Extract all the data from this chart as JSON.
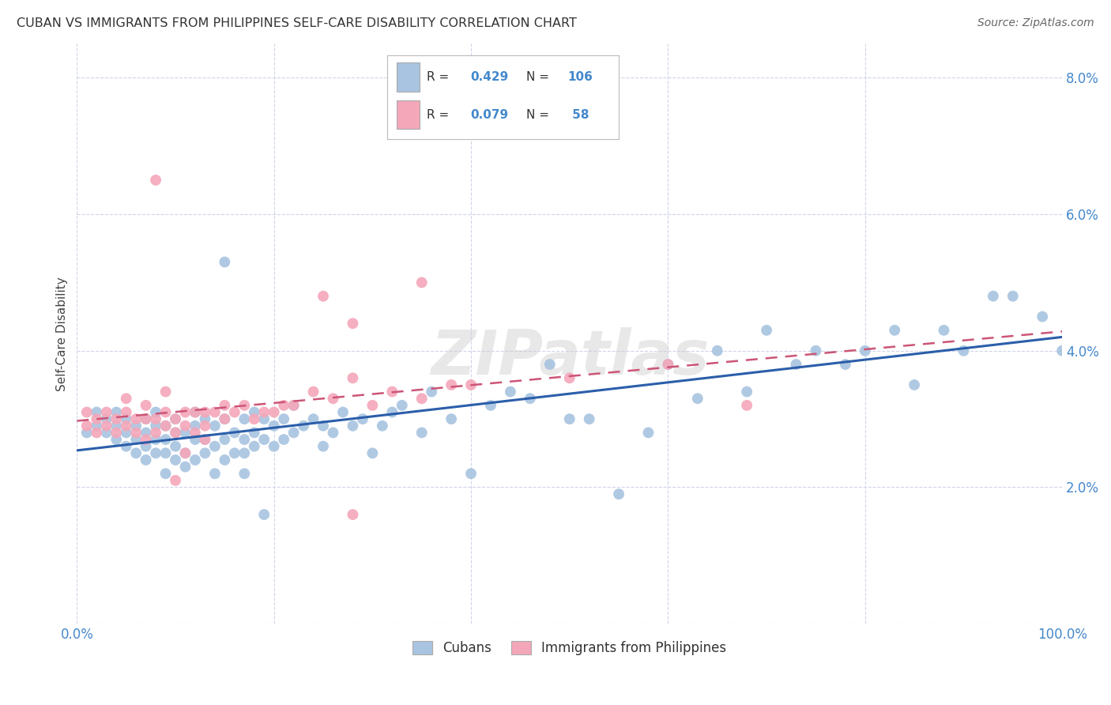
{
  "title": "CUBAN VS IMMIGRANTS FROM PHILIPPINES SELF-CARE DISABILITY CORRELATION CHART",
  "source": "Source: ZipAtlas.com",
  "ylabel": "Self-Care Disability",
  "yticks": [
    0.0,
    0.02,
    0.04,
    0.06,
    0.08
  ],
  "ytick_labels": [
    "",
    "2.0%",
    "4.0%",
    "6.0%",
    "8.0%"
  ],
  "xlim": [
    0.0,
    1.0
  ],
  "ylim": [
    0.0,
    0.085
  ],
  "cubans_R": 0.429,
  "cubans_N": 106,
  "philippines_R": 0.079,
  "philippines_N": 58,
  "cubans_color": "#a8c4e0",
  "philippines_color": "#f4a7b9",
  "cubans_line_color": "#2b5eaa",
  "philippines_line_color": "#cc5577",
  "background_color": "#ffffff",
  "grid_color": "#d0d5e8",
  "watermark": "ZIPatlas",
  "legend_label_cubans": "Cubans",
  "legend_label_philippines": "Immigrants from Philippines",
  "tick_color": "#4488cc",
  "cubans_x": [
    0.01,
    0.02,
    0.02,
    0.03,
    0.03,
    0.04,
    0.04,
    0.04,
    0.05,
    0.05,
    0.05,
    0.06,
    0.06,
    0.06,
    0.07,
    0.07,
    0.07,
    0.07,
    0.08,
    0.08,
    0.08,
    0.08,
    0.09,
    0.09,
    0.09,
    0.09,
    0.1,
    0.1,
    0.1,
    0.1,
    0.11,
    0.11,
    0.11,
    0.12,
    0.12,
    0.12,
    0.12,
    0.13,
    0.13,
    0.13,
    0.14,
    0.14,
    0.14,
    0.15,
    0.15,
    0.15,
    0.16,
    0.16,
    0.17,
    0.17,
    0.17,
    0.18,
    0.18,
    0.18,
    0.19,
    0.19,
    0.2,
    0.2,
    0.21,
    0.21,
    0.22,
    0.22,
    0.23,
    0.24,
    0.25,
    0.25,
    0.26,
    0.27,
    0.28,
    0.29,
    0.3,
    0.31,
    0.32,
    0.33,
    0.35,
    0.36,
    0.38,
    0.4,
    0.42,
    0.44,
    0.46,
    0.48,
    0.5,
    0.52,
    0.55,
    0.58,
    0.6,
    0.63,
    0.65,
    0.68,
    0.7,
    0.73,
    0.75,
    0.78,
    0.8,
    0.83,
    0.85,
    0.88,
    0.9,
    0.93,
    0.95,
    0.98,
    1.0,
    0.15,
    0.17,
    0.19
  ],
  "cubans_y": [
    0.028,
    0.029,
    0.031,
    0.028,
    0.03,
    0.027,
    0.029,
    0.031,
    0.026,
    0.028,
    0.03,
    0.025,
    0.027,
    0.029,
    0.024,
    0.026,
    0.028,
    0.03,
    0.025,
    0.027,
    0.029,
    0.031,
    0.022,
    0.025,
    0.027,
    0.029,
    0.024,
    0.026,
    0.028,
    0.03,
    0.023,
    0.025,
    0.028,
    0.024,
    0.027,
    0.029,
    0.031,
    0.025,
    0.027,
    0.03,
    0.022,
    0.026,
    0.029,
    0.024,
    0.027,
    0.03,
    0.025,
    0.028,
    0.025,
    0.027,
    0.03,
    0.026,
    0.028,
    0.031,
    0.027,
    0.03,
    0.026,
    0.029,
    0.027,
    0.03,
    0.028,
    0.032,
    0.029,
    0.03,
    0.026,
    0.029,
    0.028,
    0.031,
    0.029,
    0.03,
    0.025,
    0.029,
    0.031,
    0.032,
    0.028,
    0.034,
    0.03,
    0.022,
    0.032,
    0.034,
    0.033,
    0.038,
    0.03,
    0.03,
    0.019,
    0.028,
    0.038,
    0.033,
    0.04,
    0.034,
    0.043,
    0.038,
    0.04,
    0.038,
    0.04,
    0.043,
    0.035,
    0.043,
    0.04,
    0.048,
    0.048,
    0.045,
    0.04,
    0.053,
    0.022,
    0.016
  ],
  "philippines_x": [
    0.01,
    0.01,
    0.02,
    0.02,
    0.03,
    0.03,
    0.04,
    0.04,
    0.05,
    0.05,
    0.05,
    0.06,
    0.06,
    0.07,
    0.07,
    0.07,
    0.08,
    0.08,
    0.09,
    0.09,
    0.1,
    0.1,
    0.11,
    0.11,
    0.12,
    0.12,
    0.13,
    0.13,
    0.14,
    0.15,
    0.15,
    0.16,
    0.17,
    0.18,
    0.19,
    0.2,
    0.21,
    0.22,
    0.24,
    0.26,
    0.28,
    0.3,
    0.32,
    0.35,
    0.38,
    0.4,
    0.28,
    0.35,
    0.5,
    0.6,
    0.68,
    0.08,
    0.09,
    0.1,
    0.11,
    0.13,
    0.25,
    0.28
  ],
  "philippines_y": [
    0.029,
    0.031,
    0.028,
    0.03,
    0.029,
    0.031,
    0.028,
    0.03,
    0.029,
    0.031,
    0.033,
    0.028,
    0.03,
    0.027,
    0.03,
    0.032,
    0.028,
    0.03,
    0.029,
    0.031,
    0.028,
    0.03,
    0.029,
    0.031,
    0.028,
    0.031,
    0.029,
    0.031,
    0.031,
    0.03,
    0.032,
    0.031,
    0.032,
    0.03,
    0.031,
    0.031,
    0.032,
    0.032,
    0.034,
    0.033,
    0.036,
    0.032,
    0.034,
    0.033,
    0.035,
    0.035,
    0.044,
    0.05,
    0.036,
    0.038,
    0.032,
    0.065,
    0.034,
    0.021,
    0.025,
    0.027,
    0.048,
    0.016
  ]
}
